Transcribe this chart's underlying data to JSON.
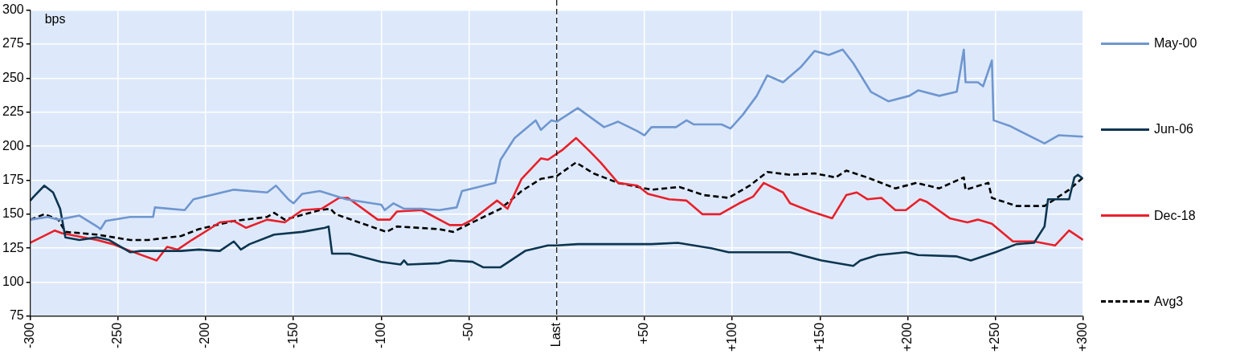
{
  "chart_data": {
    "type": "line",
    "ylabel": "bps",
    "xlim": [
      -300,
      300
    ],
    "ylim": [
      75,
      300
    ],
    "xticks": [
      -300,
      -250,
      -200,
      -150,
      -100,
      -50,
      {
        "value": 0,
        "label": "Last"
      },
      {
        "value": 50,
        "label": "+50"
      },
      {
        "value": 100,
        "label": "+100"
      },
      {
        "value": 150,
        "label": "+150"
      },
      {
        "value": 200,
        "label": "+200"
      },
      {
        "value": 250,
        "label": "+250"
      },
      {
        "value": 300,
        "label": "+300"
      }
    ],
    "yticks": [
      75,
      100,
      125,
      150,
      175,
      200,
      225,
      250,
      275,
      300
    ],
    "grid": true,
    "legend": "right",
    "marker": "none",
    "ref_lines": [
      {
        "axis": "x",
        "value": 0,
        "color": "#000000",
        "line_style": "dashed"
      }
    ],
    "series": [
      {
        "name": "May-00",
        "color": "#6f96cf",
        "line_style": "solid",
        "x": [
          -300,
          -290,
          -284,
          -272,
          -262,
          -260,
          -257,
          -243,
          -230,
          -229,
          -212,
          -207,
          -184,
          -165,
          -160,
          -153,
          -150,
          -145,
          -135,
          -120,
          -100,
          -98,
          -93,
          -87,
          -77,
          -67,
          -57,
          -54,
          -35,
          -32,
          -24,
          -12,
          -9,
          -3,
          0,
          12,
          27,
          35,
          46,
          50,
          54,
          68,
          74,
          78,
          94,
          99,
          106,
          114,
          120,
          129,
          139,
          147,
          155,
          163,
          169,
          179,
          189,
          201,
          206,
          218,
          228,
          232,
          233,
          240,
          243,
          248,
          249,
          258,
          278,
          286,
          300
        ],
        "values": [
          146,
          148,
          146,
          149,
          141,
          139,
          145,
          148,
          148,
          155,
          153,
          161,
          168,
          166,
          171,
          161,
          158,
          165,
          167,
          161,
          157,
          153,
          158,
          154,
          154,
          153,
          155,
          167,
          173,
          190,
          206,
          219,
          212,
          219,
          218,
          228,
          214,
          218,
          211,
          208,
          214,
          214,
          219,
          216,
          216,
          213,
          223,
          237,
          252,
          247,
          258,
          270,
          267,
          271,
          261,
          240,
          233,
          237,
          241,
          237,
          240,
          271,
          247,
          247,
          244,
          263,
          219,
          215,
          202,
          208,
          207
        ]
      },
      {
        "name": "Jun-06",
        "color": "#0d3550",
        "line_style": "solid",
        "x": [
          -300,
          -298,
          -292,
          -287,
          -283,
          -280,
          -272,
          -262,
          -255,
          -243,
          -237,
          -214,
          -204,
          -192,
          -184,
          -180,
          -175,
          -161,
          -145,
          -132,
          -130,
          -128,
          -118,
          -100,
          -89,
          -87,
          -85,
          -67,
          -61,
          -48,
          -42,
          -32,
          -18,
          -5,
          0,
          12,
          35,
          54,
          69,
          88,
          98,
          114,
          133,
          151,
          169,
          173,
          183,
          199,
          206,
          228,
          236,
          250,
          262,
          272,
          278,
          280,
          288,
          292,
          295,
          297,
          300
        ],
        "values": [
          160,
          163,
          171,
          166,
          154,
          133,
          131,
          133,
          131,
          122,
          123,
          123,
          124,
          123,
          130,
          124,
          128,
          135,
          137,
          140,
          141,
          121,
          121,
          115,
          113,
          116,
          113,
          114,
          116,
          115,
          111,
          111,
          123,
          127,
          127,
          128,
          128,
          128,
          129,
          125,
          122,
          122,
          122,
          116,
          112,
          116,
          120,
          122,
          120,
          119,
          116,
          122,
          128,
          129,
          141,
          161,
          161,
          161,
          177,
          179,
          176
        ]
      },
      {
        "name": "Dec-18",
        "color": "#e8202a",
        "line_style": "solid",
        "x": [
          -300,
          -286,
          -282,
          -262,
          -253,
          -243,
          -228,
          -222,
          -216,
          -208,
          -198,
          -192,
          -184,
          -177,
          -165,
          -155,
          -145,
          -134,
          -124,
          -119,
          -102,
          -95,
          -91,
          -77,
          -61,
          -54,
          -48,
          -34,
          -28,
          -20,
          -9,
          -5,
          3,
          11,
          19,
          25,
          35,
          46,
          52,
          64,
          74,
          83,
          93,
          104,
          112,
          118,
          129,
          133,
          145,
          157,
          165,
          171,
          177,
          185,
          193,
          199,
          207,
          211,
          224,
          234,
          240,
          248,
          260,
          272,
          284,
          292,
          300
        ],
        "values": [
          129,
          138,
          136,
          131,
          128,
          123,
          116,
          126,
          124,
          131,
          139,
          144,
          145,
          140,
          146,
          144,
          153,
          154,
          162,
          162,
          146,
          146,
          152,
          153,
          142,
          142,
          146,
          160,
          154,
          176,
          191,
          190,
          197,
          206,
          196,
          188,
          173,
          171,
          165,
          161,
          160,
          150,
          150,
          158,
          163,
          173,
          166,
          158,
          152,
          147,
          164,
          166,
          161,
          162,
          153,
          153,
          161,
          159,
          147,
          144,
          146,
          143,
          130,
          130,
          127,
          138,
          131
        ]
      },
      {
        "name": "Avg3",
        "color": "#000000",
        "line_style": "dashed",
        "x": [
          -300,
          -292,
          -284,
          -280,
          -262,
          -243,
          -233,
          -214,
          -204,
          -184,
          -165,
          -161,
          -155,
          -135,
          -129,
          -126,
          -106,
          -97,
          -91,
          -67,
          -59,
          -48,
          -32,
          -20,
          -9,
          0,
          11,
          21,
          35,
          54,
          70,
          84,
          98,
          110,
          120,
          133,
          147,
          159,
          165,
          177,
          193,
          205,
          218,
          232,
          233,
          246,
          248,
          262,
          278,
          292,
          300
        ],
        "values": [
          146,
          150,
          146,
          137,
          135,
          131,
          131,
          134,
          139,
          145,
          148,
          151,
          146,
          153,
          154,
          150,
          141,
          137,
          141,
          139,
          137,
          144,
          154,
          167,
          176,
          178,
          188,
          180,
          173,
          168,
          170,
          164,
          162,
          171,
          181,
          179,
          180,
          177,
          182,
          177,
          169,
          173,
          169,
          177,
          168,
          173,
          162,
          156,
          156,
          168,
          177
        ]
      }
    ]
  }
}
